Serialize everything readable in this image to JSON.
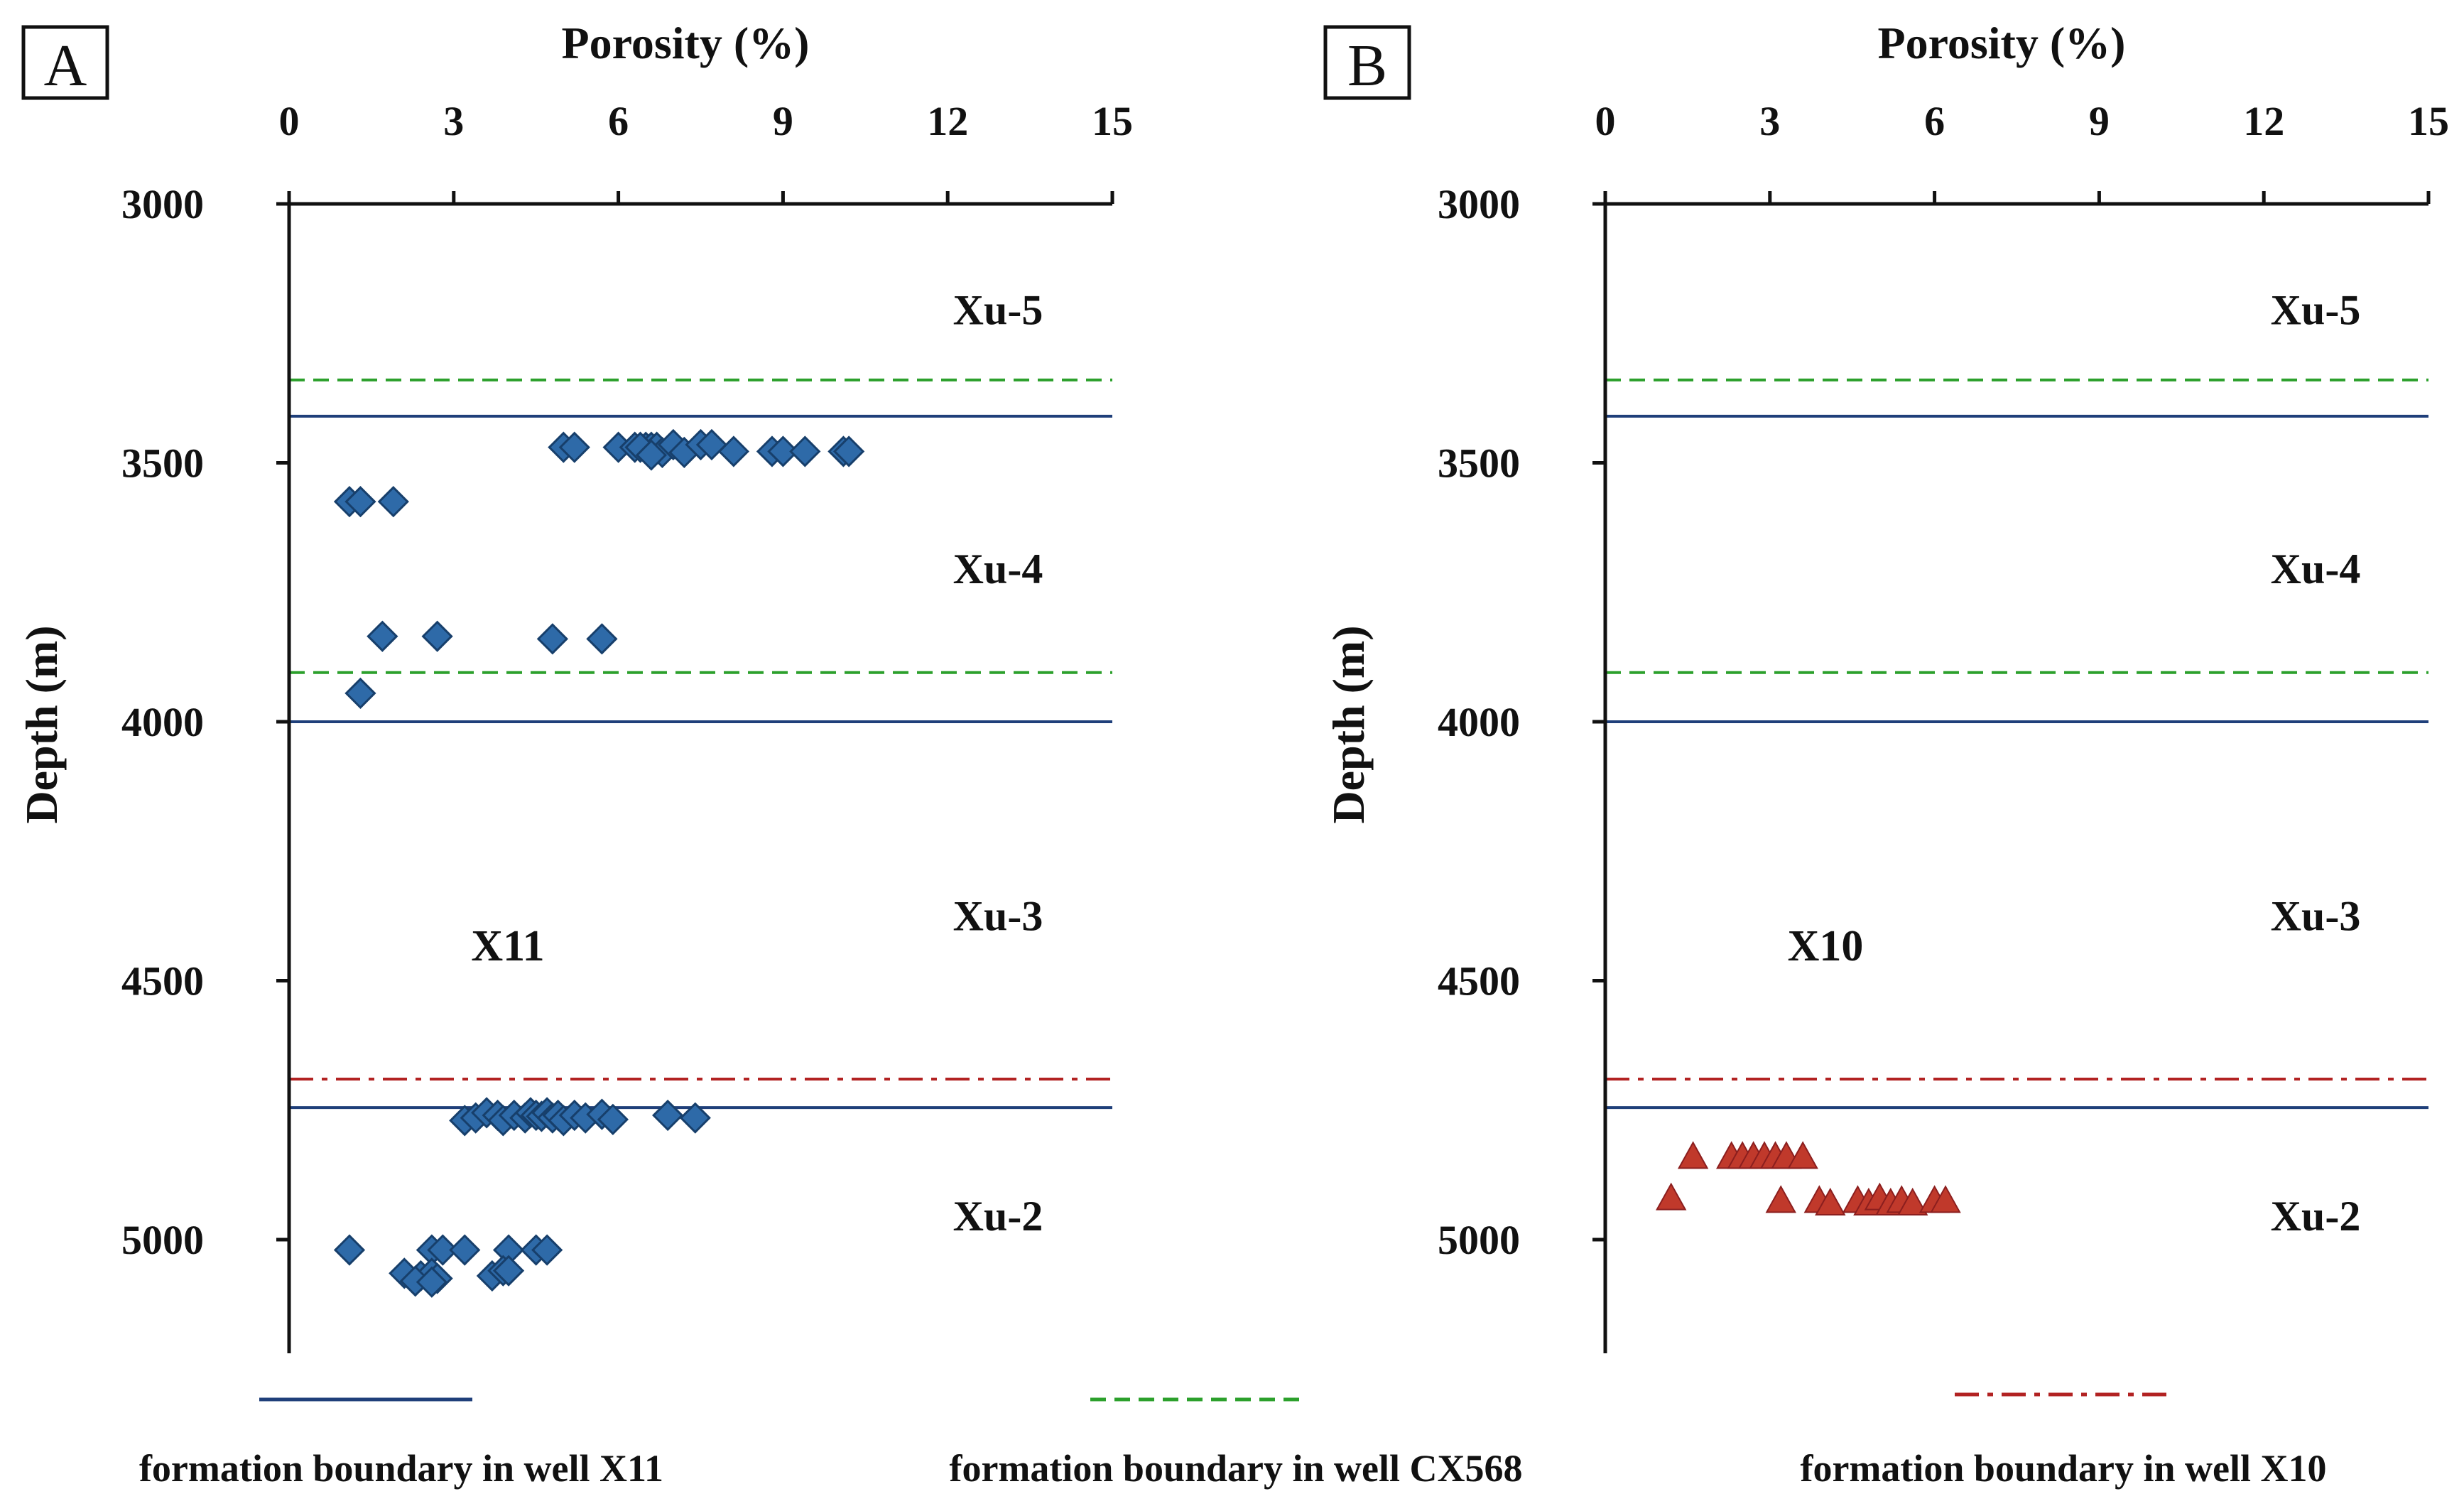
{
  "figure": {
    "legend": [
      {
        "label": "formation boundary in well X11",
        "style": "solid",
        "color": "#1f3f7a"
      },
      {
        "label": "formation boundary in well CX568",
        "style": "dashed",
        "color": "#2ca02c"
      },
      {
        "label": "formation boundary in well X10",
        "style": "dashdot",
        "color": "#b22222"
      }
    ]
  },
  "chart_data": [
    {
      "type": "scatter",
      "panel": "A",
      "well": "X11",
      "title": "Porosity (%)",
      "xlabel": "Porosity (%)",
      "ylabel": "Depth (m)",
      "xlim": [
        0,
        15
      ],
      "ylim": [
        3000,
        5200
      ],
      "xticks": [
        0,
        3,
        6,
        9,
        12,
        15
      ],
      "yticks": [
        3000,
        3500,
        4000,
        4500,
        5000
      ],
      "marker": "diamond",
      "marker_color": "#2e6aa8",
      "boundaries": [
        {
          "depth": 3340,
          "type": "CX568"
        },
        {
          "depth": 3410,
          "type": "X11"
        },
        {
          "depth": 3905,
          "type": "CX568"
        },
        {
          "depth": 4000,
          "type": "X11"
        },
        {
          "depth": 4690,
          "type": "X10"
        },
        {
          "depth": 4745,
          "type": "X11"
        }
      ],
      "zones": [
        {
          "label": "Xu-5",
          "depth": 3205
        },
        {
          "label": "Xu-4",
          "depth": 3705
        },
        {
          "label": "Xu-3",
          "depth": 4375
        },
        {
          "label": "Xu-2",
          "depth": 4955
        }
      ],
      "points": [
        [
          5.0,
          3470
        ],
        [
          5.2,
          3470
        ],
        [
          6.0,
          3470
        ],
        [
          6.3,
          3470
        ],
        [
          6.5,
          3470
        ],
        [
          6.6,
          3470
        ],
        [
          6.7,
          3470
        ],
        [
          6.8,
          3480
        ],
        [
          7.0,
          3465
        ],
        [
          7.2,
          3480
        ],
        [
          7.5,
          3465
        ],
        [
          7.7,
          3465
        ],
        [
          8.1,
          3478
        ],
        [
          8.8,
          3478
        ],
        [
          9.0,
          3478
        ],
        [
          9.4,
          3478
        ],
        [
          10.1,
          3478
        ],
        [
          10.2,
          3478
        ],
        [
          6.4,
          3470
        ],
        [
          6.6,
          3485
        ],
        [
          1.1,
          3575
        ],
        [
          1.3,
          3575
        ],
        [
          1.9,
          3575
        ],
        [
          1.7,
          3835
        ],
        [
          2.7,
          3835
        ],
        [
          4.8,
          3840
        ],
        [
          5.7,
          3840
        ],
        [
          1.3,
          3945
        ],
        [
          3.2,
          4770
        ],
        [
          3.4,
          4765
        ],
        [
          3.6,
          4755
        ],
        [
          3.8,
          4760
        ],
        [
          3.9,
          4770
        ],
        [
          4.1,
          4760
        ],
        [
          4.3,
          4765
        ],
        [
          4.4,
          4755
        ],
        [
          4.5,
          4760
        ],
        [
          4.6,
          4762
        ],
        [
          4.7,
          4755
        ],
        [
          4.8,
          4765
        ],
        [
          4.9,
          4760
        ],
        [
          5.0,
          4770
        ],
        [
          5.2,
          4760
        ],
        [
          5.4,
          4765
        ],
        [
          5.7,
          4758
        ],
        [
          5.9,
          4768
        ],
        [
          6.9,
          4760
        ],
        [
          7.4,
          4765
        ],
        [
          1.1,
          5020
        ],
        [
          2.6,
          5020
        ],
        [
          2.8,
          5020
        ],
        [
          3.2,
          5020
        ],
        [
          4.0,
          5020
        ],
        [
          4.5,
          5020
        ],
        [
          4.7,
          5020
        ],
        [
          2.1,
          5065
        ],
        [
          2.4,
          5070
        ],
        [
          2.6,
          5065
        ],
        [
          2.7,
          5075
        ],
        [
          2.3,
          5080
        ],
        [
          2.6,
          5082
        ],
        [
          3.7,
          5070
        ],
        [
          3.9,
          5060
        ],
        [
          4.0,
          5060
        ]
      ]
    },
    {
      "type": "scatter",
      "panel": "B",
      "well": "X10",
      "title": "Porosity (%)",
      "xlabel": "Porosity (%)",
      "ylabel": "Depth (m)",
      "xlim": [
        0,
        15
      ],
      "ylim": [
        3000,
        5200
      ],
      "xticks": [
        0,
        3,
        6,
        9,
        12,
        15
      ],
      "yticks": [
        3000,
        3500,
        4000,
        4500,
        5000
      ],
      "marker": "triangle",
      "marker_color": "#c0392b",
      "boundaries": [
        {
          "depth": 3340,
          "type": "CX568"
        },
        {
          "depth": 3410,
          "type": "X11"
        },
        {
          "depth": 3905,
          "type": "CX568"
        },
        {
          "depth": 4000,
          "type": "X11"
        },
        {
          "depth": 4690,
          "type": "X10"
        },
        {
          "depth": 4745,
          "type": "X11"
        }
      ],
      "zones": [
        {
          "label": "Xu-5",
          "depth": 3205
        },
        {
          "label": "Xu-4",
          "depth": 3705
        },
        {
          "label": "Xu-3",
          "depth": 4375
        },
        {
          "label": "Xu-2",
          "depth": 4955
        }
      ],
      "points": [
        [
          1.6,
          4840
        ],
        [
          2.3,
          4840
        ],
        [
          2.5,
          4840
        ],
        [
          2.7,
          4840
        ],
        [
          2.9,
          4840
        ],
        [
          3.1,
          4840
        ],
        [
          3.3,
          4840
        ],
        [
          3.6,
          4840
        ],
        [
          1.2,
          4920
        ],
        [
          3.2,
          4925
        ],
        [
          3.9,
          4925
        ],
        [
          4.1,
          4930
        ],
        [
          4.6,
          4925
        ],
        [
          4.8,
          4930
        ],
        [
          5.0,
          4920
        ],
        [
          5.2,
          4930
        ],
        [
          5.4,
          4925
        ],
        [
          5.6,
          4930
        ],
        [
          6.0,
          4925
        ],
        [
          6.2,
          4925
        ]
      ]
    }
  ]
}
